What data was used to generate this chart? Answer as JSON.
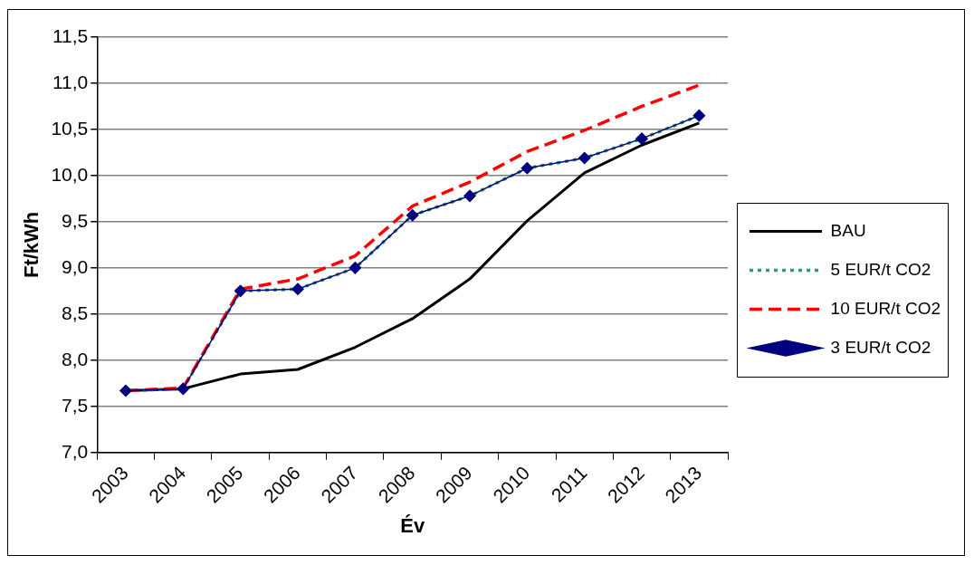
{
  "chart_data": {
    "type": "line",
    "xlabel": "Év",
    "ylabel": "Ft/kWh",
    "categories": [
      "2003",
      "2004",
      "2005",
      "2006",
      "2007",
      "2008",
      "2009",
      "2010",
      "2011",
      "2012",
      "2013"
    ],
    "series": [
      {
        "name": "BAU",
        "color": "#000000",
        "line_style": "solid",
        "marker": "none",
        "values": [
          7.67,
          7.69,
          7.85,
          7.9,
          8.14,
          8.45,
          8.88,
          9.51,
          10.03,
          10.33,
          10.57
        ]
      },
      {
        "name": "5 EUR/t CO2",
        "color": "#339966",
        "line_style": "dotted",
        "marker": "none",
        "values": [
          7.67,
          7.69,
          8.75,
          8.77,
          9.0,
          9.57,
          9.78,
          10.08,
          10.19,
          10.4,
          10.65
        ]
      },
      {
        "name": "10 EUR/t CO2",
        "color": "#ff0000",
        "line_style": "dashed",
        "marker": "none",
        "values": [
          7.67,
          7.7,
          8.77,
          8.88,
          9.13,
          9.67,
          9.93,
          10.26,
          10.49,
          10.75,
          10.98
        ]
      },
      {
        "name": "3 EUR/t CO2",
        "color": "#000080",
        "line_style": "solid",
        "marker": "diamond",
        "values": [
          7.67,
          7.69,
          8.75,
          8.77,
          9.0,
          9.57,
          9.78,
          10.08,
          10.19,
          10.4,
          10.65
        ]
      }
    ],
    "ylim": [
      7.0,
      11.5
    ],
    "yticks": [
      {
        "value": 7.0,
        "label": "7,0"
      },
      {
        "value": 7.5,
        "label": "7,5"
      },
      {
        "value": 8.0,
        "label": "8,0"
      },
      {
        "value": 8.5,
        "label": "8,5"
      },
      {
        "value": 9.0,
        "label": "9,0"
      },
      {
        "value": 9.5,
        "label": "9,5"
      },
      {
        "value": 10.0,
        "label": "10,0"
      },
      {
        "value": 10.5,
        "label": "10,5"
      },
      {
        "value": 11.0,
        "label": "11,0"
      },
      {
        "value": 11.5,
        "label": "11,5"
      }
    ],
    "grid": "y",
    "legend": "right"
  }
}
